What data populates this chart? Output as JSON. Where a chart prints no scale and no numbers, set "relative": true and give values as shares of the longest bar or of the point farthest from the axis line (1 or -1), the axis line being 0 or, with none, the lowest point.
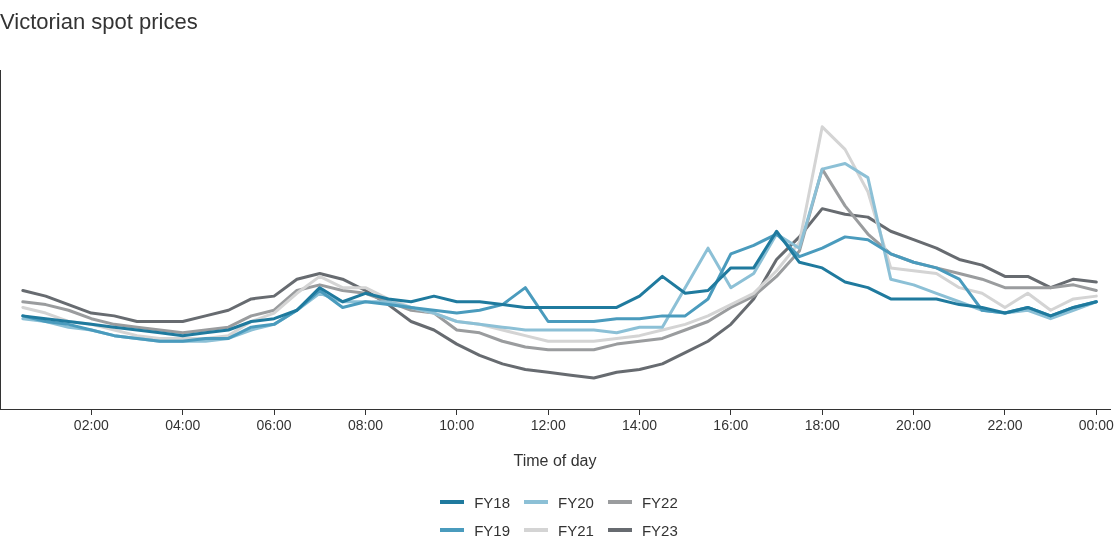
{
  "chart_data": {
    "type": "line",
    "title": "Victorian spot prices",
    "xlabel": "Time of day",
    "relative": true,
    "legend": "bottom",
    "grid": false,
    "marker": "none",
    "line_style": "solid",
    "x": [
      0.5,
      1,
      1.5,
      2,
      2.5,
      3,
      3.5,
      4,
      4.5,
      5,
      5.5,
      6,
      6.5,
      7,
      7.5,
      8,
      8.5,
      9,
      9.5,
      10,
      10.5,
      11,
      11.5,
      12,
      12.5,
      13,
      13.5,
      14,
      14.5,
      15,
      15.5,
      16,
      16.5,
      17,
      17.5,
      18,
      18.5,
      19,
      19.5,
      20,
      20.5,
      21,
      21.5,
      22,
      22.5,
      23,
      23.5,
      24
    ],
    "xlim": [
      0,
      24.3
    ],
    "xticks": [
      {
        "value": 2,
        "label": "02:00"
      },
      {
        "value": 4,
        "label": "04:00"
      },
      {
        "value": 6,
        "label": "06:00"
      },
      {
        "value": 8,
        "label": "08:00"
      },
      {
        "value": 10,
        "label": "10:00"
      },
      {
        "value": 12,
        "label": "12:00"
      },
      {
        "value": 14,
        "label": "14:00"
      },
      {
        "value": 16,
        "label": "16:00"
      },
      {
        "value": 18,
        "label": "18:00"
      },
      {
        "value": 20,
        "label": "20:00"
      },
      {
        "value": 22,
        "label": "22:00"
      },
      {
        "value": 24,
        "label": "00:00"
      }
    ],
    "series": [
      {
        "name": "FY18",
        "color": "#1f7a9e",
        "values": [
          0.33,
          0.32,
          0.31,
          0.3,
          0.29,
          0.28,
          0.27,
          0.26,
          0.27,
          0.28,
          0.31,
          0.32,
          0.35,
          0.43,
          0.38,
          0.41,
          0.39,
          0.38,
          0.4,
          0.38,
          0.38,
          0.37,
          0.36,
          0.36,
          0.36,
          0.36,
          0.36,
          0.4,
          0.47,
          0.41,
          0.42,
          0.5,
          0.5,
          0.63,
          0.52,
          0.5,
          0.45,
          0.43,
          0.39,
          0.39,
          0.39,
          0.37,
          0.36,
          0.34,
          0.36,
          0.33,
          0.36,
          0.38
        ]
      },
      {
        "name": "FY19",
        "color": "#4a9bbd",
        "values": [
          0.33,
          0.31,
          0.3,
          0.28,
          0.26,
          0.25,
          0.24,
          0.24,
          0.25,
          0.25,
          0.29,
          0.3,
          0.35,
          0.42,
          0.36,
          0.38,
          0.37,
          0.36,
          0.35,
          0.34,
          0.35,
          0.37,
          0.43,
          0.31,
          0.31,
          0.31,
          0.32,
          0.32,
          0.33,
          0.33,
          0.39,
          0.55,
          0.58,
          0.62,
          0.54,
          0.57,
          0.61,
          0.6,
          0.55,
          0.52,
          0.5,
          0.46,
          0.35,
          0.34,
          0.36,
          0.33,
          0.36,
          0.38
        ]
      },
      {
        "name": "FY20",
        "color": "#8cc0d6",
        "values": [
          0.32,
          0.31,
          0.29,
          0.28,
          0.26,
          0.25,
          0.24,
          0.24,
          0.24,
          0.25,
          0.28,
          0.3,
          0.35,
          0.41,
          0.38,
          0.38,
          0.38,
          0.36,
          0.34,
          0.31,
          0.3,
          0.29,
          0.28,
          0.28,
          0.28,
          0.28,
          0.27,
          0.29,
          0.29,
          0.43,
          0.57,
          0.43,
          0.48,
          0.62,
          0.57,
          0.85,
          0.87,
          0.82,
          0.46,
          0.44,
          0.41,
          0.38,
          0.35,
          0.34,
          0.35,
          0.32,
          0.35,
          0.38
        ]
      },
      {
        "name": "FY21",
        "color": "#d4d4d4",
        "values": [
          0.36,
          0.34,
          0.31,
          0.3,
          0.28,
          0.26,
          0.25,
          0.25,
          0.25,
          0.26,
          0.31,
          0.34,
          0.41,
          0.47,
          0.43,
          0.43,
          0.39,
          0.36,
          0.34,
          0.31,
          0.3,
          0.28,
          0.26,
          0.24,
          0.24,
          0.24,
          0.25,
          0.26,
          0.28,
          0.3,
          0.33,
          0.37,
          0.41,
          0.49,
          0.59,
          1,
          0.92,
          0.77,
          0.5,
          0.49,
          0.48,
          0.43,
          0.41,
          0.36,
          0.41,
          0.35,
          0.39,
          0.4
        ]
      },
      {
        "name": "FY22",
        "color": "#9a9c9e",
        "values": [
          0.38,
          0.37,
          0.35,
          0.32,
          0.3,
          0.29,
          0.28,
          0.27,
          0.28,
          0.29,
          0.33,
          0.35,
          0.42,
          0.44,
          0.42,
          0.41,
          0.38,
          0.35,
          0.34,
          0.28,
          0.27,
          0.24,
          0.22,
          0.21,
          0.21,
          0.21,
          0.23,
          0.24,
          0.25,
          0.28,
          0.31,
          0.36,
          0.4,
          0.47,
          0.56,
          0.85,
          0.72,
          0.62,
          0.55,
          0.52,
          0.5,
          0.48,
          0.46,
          0.43,
          0.43,
          0.43,
          0.44,
          0.42
        ]
      },
      {
        "name": "FY23",
        "color": "#676b70",
        "values": [
          0.42,
          0.4,
          0.37,
          0.34,
          0.33,
          0.31,
          0.31,
          0.31,
          0.33,
          0.35,
          0.39,
          0.4,
          0.46,
          0.48,
          0.46,
          0.42,
          0.37,
          0.31,
          0.28,
          0.23,
          0.19,
          0.16,
          0.14,
          0.13,
          0.12,
          0.11,
          0.13,
          0.14,
          0.16,
          0.2,
          0.24,
          0.3,
          0.39,
          0.53,
          0.61,
          0.71,
          0.69,
          0.68,
          0.63,
          0.6,
          0.57,
          0.53,
          0.51,
          0.47,
          0.47,
          0.43,
          0.46,
          0.45
        ]
      }
    ]
  }
}
